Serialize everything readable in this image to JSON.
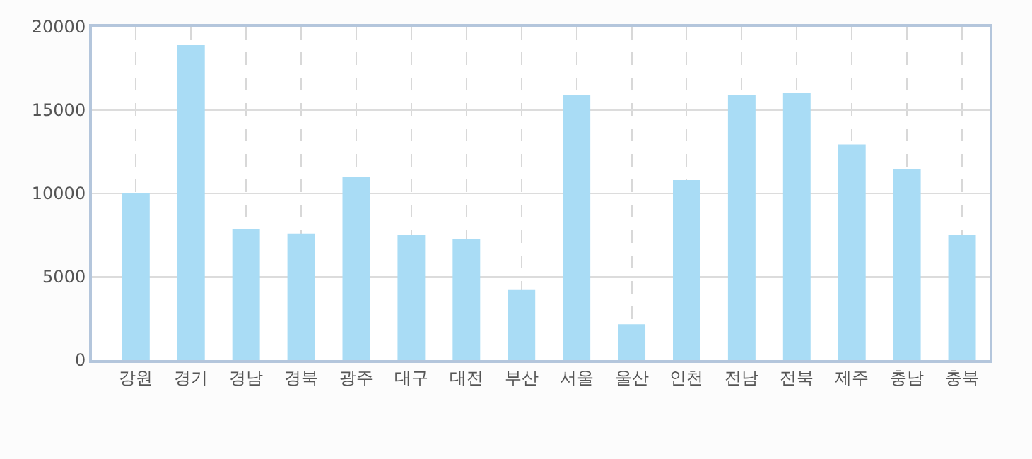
{
  "chart_data": {
    "type": "bar",
    "categories": [
      "강원",
      "경기",
      "경남",
      "경북",
      "광주",
      "대구",
      "대전",
      "부산",
      "서울",
      "울산",
      "인천",
      "전남",
      "전북",
      "제주",
      "충남",
      "충북"
    ],
    "series": [
      {
        "color": "#a9dcf5",
        "values": [
          10000,
          18900,
          7850,
          7600,
          11000,
          7500,
          7250,
          4250,
          15900,
          2150,
          10800,
          15900,
          16050,
          12950,
          11450,
          7500
        ]
      }
    ],
    "ylim": [
      0,
      20000
    ],
    "yticks": [
      0,
      5000,
      10000,
      15000,
      20000
    ],
    "grid": true
  }
}
